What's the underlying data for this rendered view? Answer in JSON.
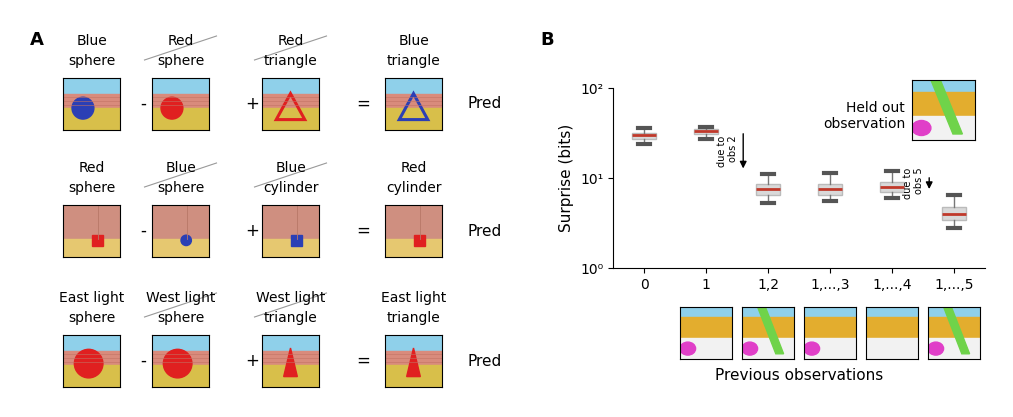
{
  "panel_a": {
    "label": "A",
    "pred_label": "Pred",
    "rows": [
      {
        "captions": [
          "Blue\nsphere",
          "Red\nsphere",
          "Red\ntriangle",
          "Blue\ntriangle"
        ],
        "struck": [
          false,
          true,
          true,
          false
        ],
        "operators": [
          "-",
          "+",
          "="
        ]
      },
      {
        "captions": [
          "Red\nsphere",
          "Blue\nsphere",
          "Blue\ncylinder",
          "Red\ncylinder"
        ],
        "struck": [
          false,
          true,
          true,
          false
        ],
        "operators": [
          "-",
          "+",
          "="
        ]
      },
      {
        "captions": [
          "East light\nsphere",
          "West light\nsphere",
          "West light\ntriangle",
          "East light\ntriangle"
        ],
        "struck": [
          false,
          true,
          true,
          false
        ],
        "operators": [
          "-",
          "+",
          "="
        ]
      }
    ]
  },
  "chart_data": {
    "panel_label": "B",
    "type": "box",
    "categories": [
      "0",
      "1",
      "1,2",
      "1,...,3",
      "1,...,4",
      "1,...,5"
    ],
    "values": [
      30,
      33,
      7.5,
      7.5,
      8,
      4
    ],
    "q1": [
      27,
      31,
      6.5,
      6.5,
      7,
      3.4
    ],
    "q3": [
      32,
      35,
      8.5,
      8.5,
      9,
      4.8
    ],
    "whisker_low": [
      24,
      27,
      5.3,
      5.5,
      6,
      2.8
    ],
    "whisker_high": [
      36,
      37,
      11,
      11.5,
      12,
      6.5
    ],
    "color": "#d9d9d9",
    "xlabel": "Previous observations",
    "ylabel": "Surprise (bits)",
    "log": "y",
    "ylim": [
      1,
      100
    ],
    "yticks": [
      {
        "value": 1,
        "label": "10⁰"
      },
      {
        "value": 10,
        "label": "10¹"
      },
      {
        "value": 100,
        "label": "10²"
      }
    ],
    "annotations": [
      {
        "text": "due to\nobs 2",
        "category": "1,2"
      },
      {
        "text": "due to\nobs 5",
        "category": "1,...,5"
      }
    ],
    "held_out_label": "Held out\nobservation"
  }
}
